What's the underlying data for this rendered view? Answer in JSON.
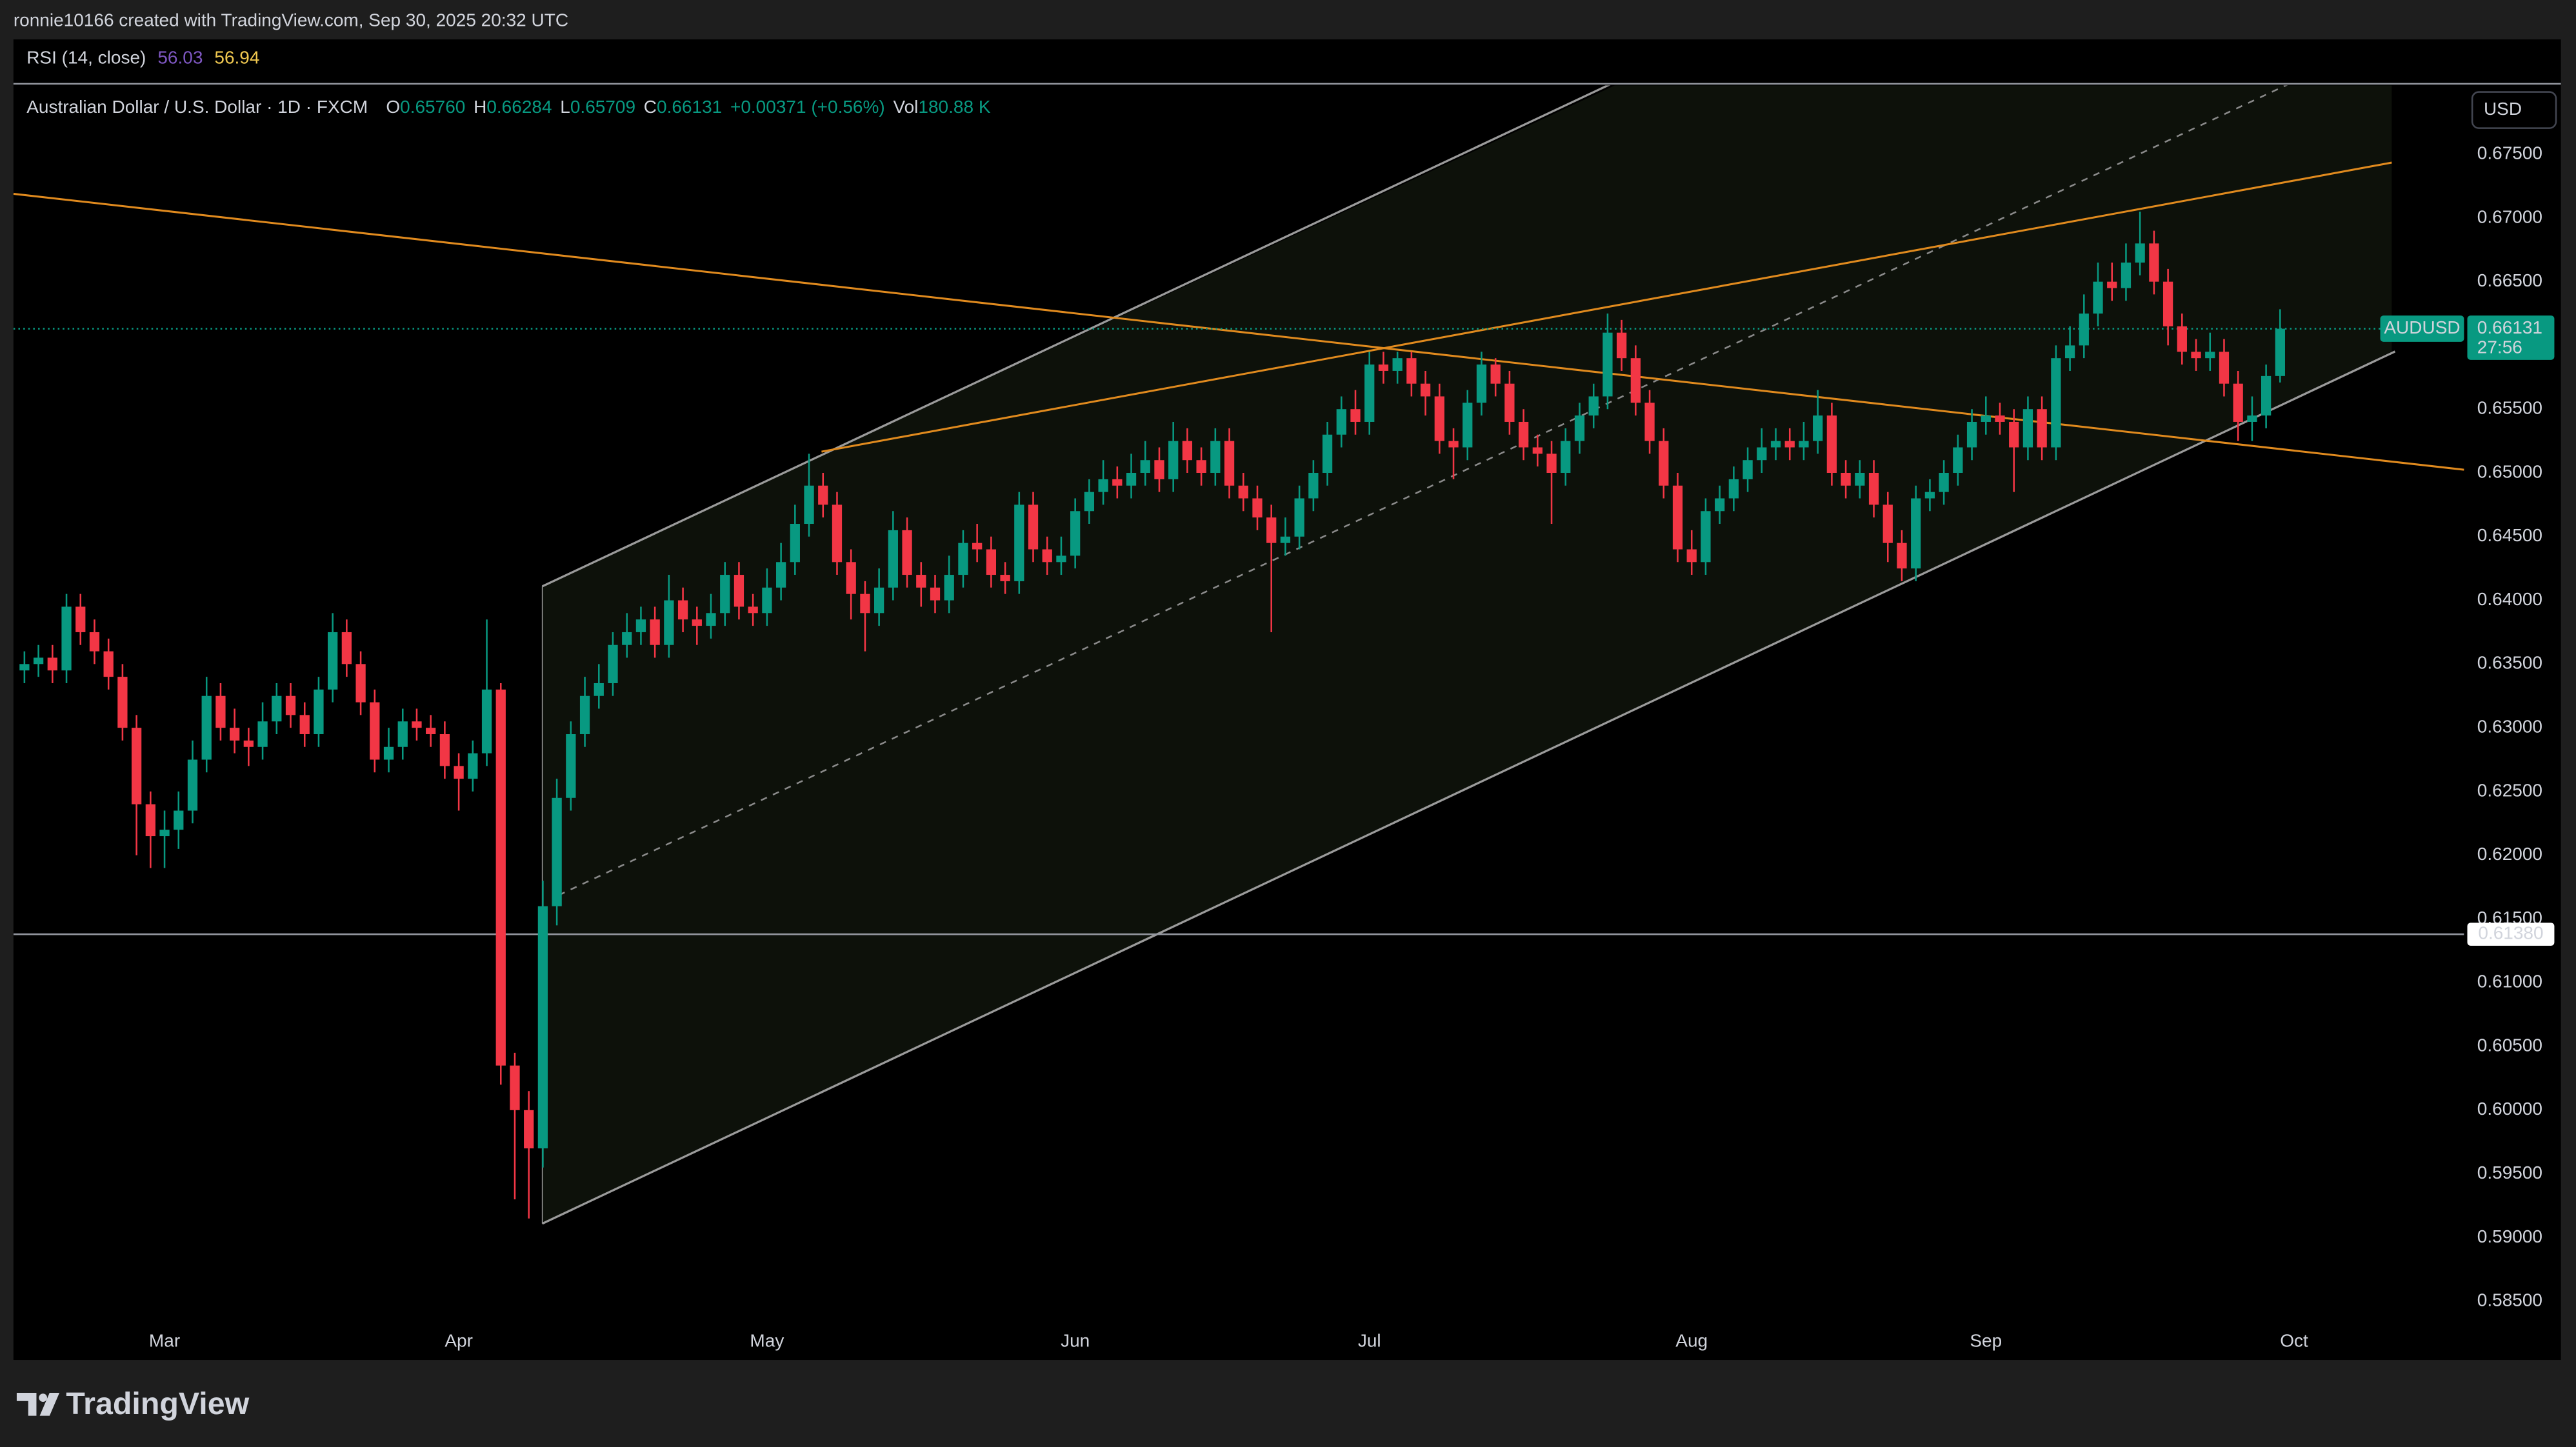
{
  "header": {
    "attribution": "ronnie10166 created with TradingView.com, Sep 30, 2025 20:32 UTC",
    "indicator": "RSI (14, close)",
    "indicator_values": [
      {
        "value": "56.03",
        "color": "#7e57c2"
      },
      {
        "value": "56.94",
        "color": "#f0c850"
      }
    ]
  },
  "chart_data": {
    "type": "candlestick",
    "title": "Australian Dollar / U.S. Dollar · 1D · FXCM",
    "legend": [
      {
        "key": "O",
        "value": "0.65760"
      },
      {
        "key": "H",
        "value": "0.66284"
      },
      {
        "key": "L",
        "value": "0.65709"
      },
      {
        "key": "C",
        "value": "0.66131"
      }
    ],
    "change": "+0.00371 (+0.56%)",
    "volume": {
      "key": "Vol",
      "value": "180.88 K"
    },
    "currency": "USD",
    "symbol": "AUDUSD",
    "countdown": "27:56",
    "categories": [
      null,
      null,
      null,
      null,
      null,
      null,
      null,
      null,
      null,
      null,
      "Mar",
      null,
      null,
      null,
      null,
      null,
      null,
      null,
      null,
      null,
      null,
      null,
      null,
      null,
      null,
      null,
      null,
      null,
      null,
      null,
      null,
      "Apr",
      null,
      null,
      null,
      null,
      null,
      null,
      null,
      null,
      null,
      null,
      null,
      null,
      null,
      null,
      null,
      null,
      null,
      null,
      null,
      null,
      null,
      "May",
      null,
      null,
      null,
      null,
      null,
      null,
      null,
      null,
      null,
      null,
      null,
      null,
      null,
      null,
      null,
      null,
      null,
      null,
      null,
      null,
      null,
      "Jun",
      null,
      null,
      null,
      null,
      null,
      null,
      null,
      null,
      null,
      null,
      null,
      null,
      null,
      null,
      null,
      null,
      null,
      null,
      null,
      null,
      "Jul",
      null,
      null,
      null,
      null,
      null,
      null,
      null,
      null,
      null,
      null,
      null,
      null,
      null,
      null,
      null,
      null,
      null,
      null,
      null,
      null,
      null,
      null,
      "Aug",
      null,
      null,
      null,
      null,
      null,
      null,
      null,
      null,
      null,
      null,
      null,
      null,
      null,
      null,
      null,
      null,
      null,
      null,
      null,
      null,
      "Sep",
      null,
      null,
      null,
      null,
      null,
      null,
      null,
      null,
      null,
      null,
      null,
      null,
      null,
      null,
      null,
      null,
      null,
      null,
      null,
      null,
      null
    ],
    "future_categories": [
      "Oct"
    ],
    "open": [
      0.6345,
      0.635,
      0.6355,
      0.6345,
      0.6395,
      0.6375,
      0.636,
      0.634,
      0.63,
      0.624,
      0.6215,
      0.622,
      0.6235,
      0.6275,
      0.6325,
      0.63,
      0.629,
      0.6285,
      0.6305,
      0.6325,
      0.631,
      0.6295,
      0.633,
      0.6375,
      0.635,
      0.632,
      0.6275,
      0.6285,
      0.6305,
      0.63,
      0.6295,
      0.627,
      0.626,
      0.628,
      0.633,
      0.6035,
      0.6,
      0.597,
      0.616,
      0.6245,
      0.6295,
      0.6325,
      0.6335,
      0.6365,
      0.6375,
      0.6385,
      0.6365,
      0.64,
      0.6385,
      0.638,
      0.639,
      0.642,
      0.6395,
      0.639,
      0.641,
      0.643,
      0.646,
      0.649,
      0.6475,
      0.643,
      0.6405,
      0.639,
      0.641,
      0.6455,
      0.642,
      0.641,
      0.64,
      0.642,
      0.6445,
      0.644,
      0.642,
      0.6415,
      0.6475,
      0.644,
      0.643,
      0.6435,
      0.647,
      0.6485,
      0.6495,
      0.649,
      0.65,
      0.651,
      0.6495,
      0.6525,
      0.651,
      0.65,
      0.6525,
      0.649,
      0.648,
      0.6465,
      0.6445,
      0.645,
      0.648,
      0.65,
      0.653,
      0.655,
      0.654,
      0.6585,
      0.658,
      0.659,
      0.657,
      0.656,
      0.6525,
      0.652,
      0.6555,
      0.6585,
      0.657,
      0.654,
      0.652,
      0.6515,
      0.65,
      0.6525,
      0.6545,
      0.656,
      0.661,
      0.659,
      0.6555,
      0.6525,
      0.649,
      0.644,
      0.643,
      0.647,
      0.648,
      0.6495,
      0.651,
      0.652,
      0.6525,
      0.652,
      0.6525,
      0.6545,
      0.65,
      0.649,
      0.65,
      0.6475,
      0.6445,
      0.6425,
      0.648,
      0.6485,
      0.65,
      0.652,
      0.654,
      0.6545,
      0.654,
      0.652,
      0.655,
      0.652,
      0.659,
      0.66,
      0.6625,
      0.665,
      0.6645,
      0.6665,
      0.668,
      0.665,
      0.6615,
      0.6595,
      0.659,
      0.6595,
      0.657,
      0.654,
      0.6545,
      0.6576
    ],
    "high": [
      0.636,
      0.6365,
      0.6365,
      0.6405,
      0.6405,
      0.6385,
      0.637,
      0.635,
      0.631,
      0.625,
      0.6235,
      0.625,
      0.629,
      0.634,
      0.6335,
      0.6315,
      0.63,
      0.632,
      0.6335,
      0.6335,
      0.632,
      0.634,
      0.639,
      0.6385,
      0.636,
      0.633,
      0.63,
      0.6315,
      0.6315,
      0.631,
      0.6305,
      0.628,
      0.629,
      0.6385,
      0.6335,
      0.6045,
      0.6015,
      0.618,
      0.626,
      0.6305,
      0.634,
      0.635,
      0.6375,
      0.639,
      0.6395,
      0.6395,
      0.642,
      0.641,
      0.6395,
      0.6405,
      0.643,
      0.643,
      0.6405,
      0.6425,
      0.6445,
      0.6475,
      0.6515,
      0.65,
      0.6485,
      0.644,
      0.6415,
      0.6425,
      0.647,
      0.6465,
      0.643,
      0.642,
      0.6435,
      0.6455,
      0.646,
      0.645,
      0.643,
      0.6485,
      0.6485,
      0.645,
      0.645,
      0.648,
      0.6495,
      0.651,
      0.6505,
      0.6515,
      0.6525,
      0.652,
      0.654,
      0.6535,
      0.652,
      0.6535,
      0.6535,
      0.65,
      0.649,
      0.6475,
      0.6465,
      0.649,
      0.651,
      0.654,
      0.656,
      0.6565,
      0.6595,
      0.6595,
      0.6595,
      0.6595,
      0.658,
      0.657,
      0.6535,
      0.6565,
      0.6595,
      0.659,
      0.658,
      0.655,
      0.653,
      0.6525,
      0.6535,
      0.6555,
      0.657,
      0.6625,
      0.662,
      0.66,
      0.6565,
      0.6535,
      0.65,
      0.6455,
      0.648,
      0.649,
      0.6505,
      0.652,
      0.6535,
      0.6535,
      0.6535,
      0.654,
      0.6565,
      0.6555,
      0.651,
      0.651,
      0.651,
      0.6485,
      0.6455,
      0.649,
      0.6495,
      0.651,
      0.653,
      0.655,
      0.656,
      0.6555,
      0.655,
      0.656,
      0.656,
      0.66,
      0.6615,
      0.664,
      0.6665,
      0.6665,
      0.668,
      0.6705,
      0.669,
      0.666,
      0.6625,
      0.6605,
      0.661,
      0.6605,
      0.658,
      0.656,
      0.6585,
      0.66284
    ],
    "low": [
      0.6335,
      0.634,
      0.6335,
      0.6335,
      0.6365,
      0.635,
      0.633,
      0.629,
      0.62,
      0.619,
      0.619,
      0.6205,
      0.6225,
      0.6265,
      0.629,
      0.628,
      0.627,
      0.6275,
      0.6295,
      0.63,
      0.6285,
      0.6285,
      0.632,
      0.634,
      0.631,
      0.6265,
      0.6265,
      0.6275,
      0.629,
      0.6285,
      0.626,
      0.6235,
      0.625,
      0.627,
      0.602,
      0.593,
      0.5915,
      0.5955,
      0.6145,
      0.6235,
      0.6285,
      0.6315,
      0.6325,
      0.6355,
      0.6365,
      0.6355,
      0.6355,
      0.6375,
      0.6365,
      0.637,
      0.638,
      0.6385,
      0.638,
      0.638,
      0.64,
      0.642,
      0.645,
      0.6465,
      0.642,
      0.6385,
      0.636,
      0.638,
      0.64,
      0.641,
      0.6395,
      0.639,
      0.639,
      0.641,
      0.643,
      0.641,
      0.6405,
      0.6405,
      0.643,
      0.642,
      0.642,
      0.6425,
      0.646,
      0.6475,
      0.648,
      0.648,
      0.649,
      0.6485,
      0.6485,
      0.65,
      0.649,
      0.649,
      0.648,
      0.647,
      0.6455,
      0.6375,
      0.6435,
      0.644,
      0.647,
      0.649,
      0.652,
      0.653,
      0.653,
      0.657,
      0.657,
      0.656,
      0.6545,
      0.6515,
      0.6495,
      0.651,
      0.6545,
      0.656,
      0.653,
      0.651,
      0.6505,
      0.646,
      0.649,
      0.6515,
      0.6535,
      0.655,
      0.658,
      0.6545,
      0.6515,
      0.648,
      0.643,
      0.642,
      0.642,
      0.646,
      0.647,
      0.6485,
      0.65,
      0.651,
      0.651,
      0.651,
      0.6515,
      0.649,
      0.648,
      0.648,
      0.6465,
      0.643,
      0.6415,
      0.6415,
      0.647,
      0.6475,
      0.649,
      0.651,
      0.653,
      0.653,
      0.6485,
      0.651,
      0.651,
      0.651,
      0.658,
      0.659,
      0.6615,
      0.6635,
      0.6635,
      0.6655,
      0.664,
      0.66,
      0.6585,
      0.658,
      0.658,
      0.656,
      0.6525,
      0.6525,
      0.6535,
      0.65709
    ],
    "close": [
      0.635,
      0.6355,
      0.6345,
      0.6395,
      0.6375,
      0.636,
      0.634,
      0.63,
      0.624,
      0.6215,
      0.622,
      0.6235,
      0.6275,
      0.6325,
      0.63,
      0.629,
      0.6285,
      0.6305,
      0.6325,
      0.631,
      0.6295,
      0.633,
      0.6375,
      0.635,
      0.632,
      0.6275,
      0.6285,
      0.6305,
      0.63,
      0.6295,
      0.627,
      0.626,
      0.628,
      0.633,
      0.6035,
      0.6,
      0.597,
      0.616,
      0.6245,
      0.6295,
      0.6325,
      0.6335,
      0.6365,
      0.6375,
      0.6385,
      0.6365,
      0.64,
      0.6385,
      0.638,
      0.639,
      0.642,
      0.6395,
      0.639,
      0.641,
      0.643,
      0.646,
      0.649,
      0.6475,
      0.643,
      0.6405,
      0.639,
      0.641,
      0.6455,
      0.642,
      0.641,
      0.64,
      0.642,
      0.6445,
      0.644,
      0.642,
      0.6415,
      0.6475,
      0.644,
      0.643,
      0.6435,
      0.647,
      0.6485,
      0.6495,
      0.649,
      0.65,
      0.651,
      0.6495,
      0.6525,
      0.651,
      0.65,
      0.6525,
      0.649,
      0.648,
      0.6465,
      0.6445,
      0.645,
      0.648,
      0.65,
      0.653,
      0.655,
      0.654,
      0.6585,
      0.658,
      0.659,
      0.657,
      0.656,
      0.6525,
      0.652,
      0.6555,
      0.6585,
      0.657,
      0.654,
      0.652,
      0.6515,
      0.65,
      0.6525,
      0.6545,
      0.656,
      0.661,
      0.659,
      0.6555,
      0.6525,
      0.649,
      0.644,
      0.643,
      0.647,
      0.648,
      0.6495,
      0.651,
      0.652,
      0.6525,
      0.652,
      0.6525,
      0.6545,
      0.65,
      0.649,
      0.65,
      0.6475,
      0.6445,
      0.6425,
      0.648,
      0.6485,
      0.65,
      0.652,
      0.654,
      0.6545,
      0.654,
      0.652,
      0.655,
      0.652,
      0.659,
      0.66,
      0.6625,
      0.665,
      0.6645,
      0.6665,
      0.668,
      0.665,
      0.6615,
      0.6595,
      0.659,
      0.6595,
      0.657,
      0.654,
      0.6545,
      0.6576,
      0.66131
    ],
    "up_color": "#089981",
    "down_color": "#f23645",
    "ylim": [
      0.5804,
      0.6804
    ],
    "yticks": [
      {
        "value": 0.585,
        "label": "0.58500"
      },
      {
        "value": 0.59,
        "label": "0.59000"
      },
      {
        "value": 0.595,
        "label": "0.59500"
      },
      {
        "value": 0.6,
        "label": "0.60000"
      },
      {
        "value": 0.605,
        "label": "0.60500"
      },
      {
        "value": 0.61,
        "label": "0.61000"
      },
      {
        "value": 0.615,
        "label": "0.61500"
      },
      {
        "value": 0.62,
        "label": "0.62000"
      },
      {
        "value": 0.625,
        "label": "0.62500"
      },
      {
        "value": 0.63,
        "label": "0.63000"
      },
      {
        "value": 0.635,
        "label": "0.63500"
      },
      {
        "value": 0.64,
        "label": "0.64000"
      },
      {
        "value": 0.645,
        "label": "0.64500"
      },
      {
        "value": 0.65,
        "label": "0.65000"
      },
      {
        "value": 0.655,
        "label": "0.65500"
      },
      {
        "value": 0.66,
        "label": "0.66000"
      },
      {
        "value": 0.665,
        "label": "0.66500"
      },
      {
        "value": 0.67,
        "label": "0.67000"
      },
      {
        "value": 0.675,
        "label": "0.67500"
      }
    ],
    "horizontal_line": {
      "value": 0.6138,
      "label": "0.61380",
      "color": "#9598a1"
    }
  },
  "footer": {
    "brand": "TradingView"
  }
}
